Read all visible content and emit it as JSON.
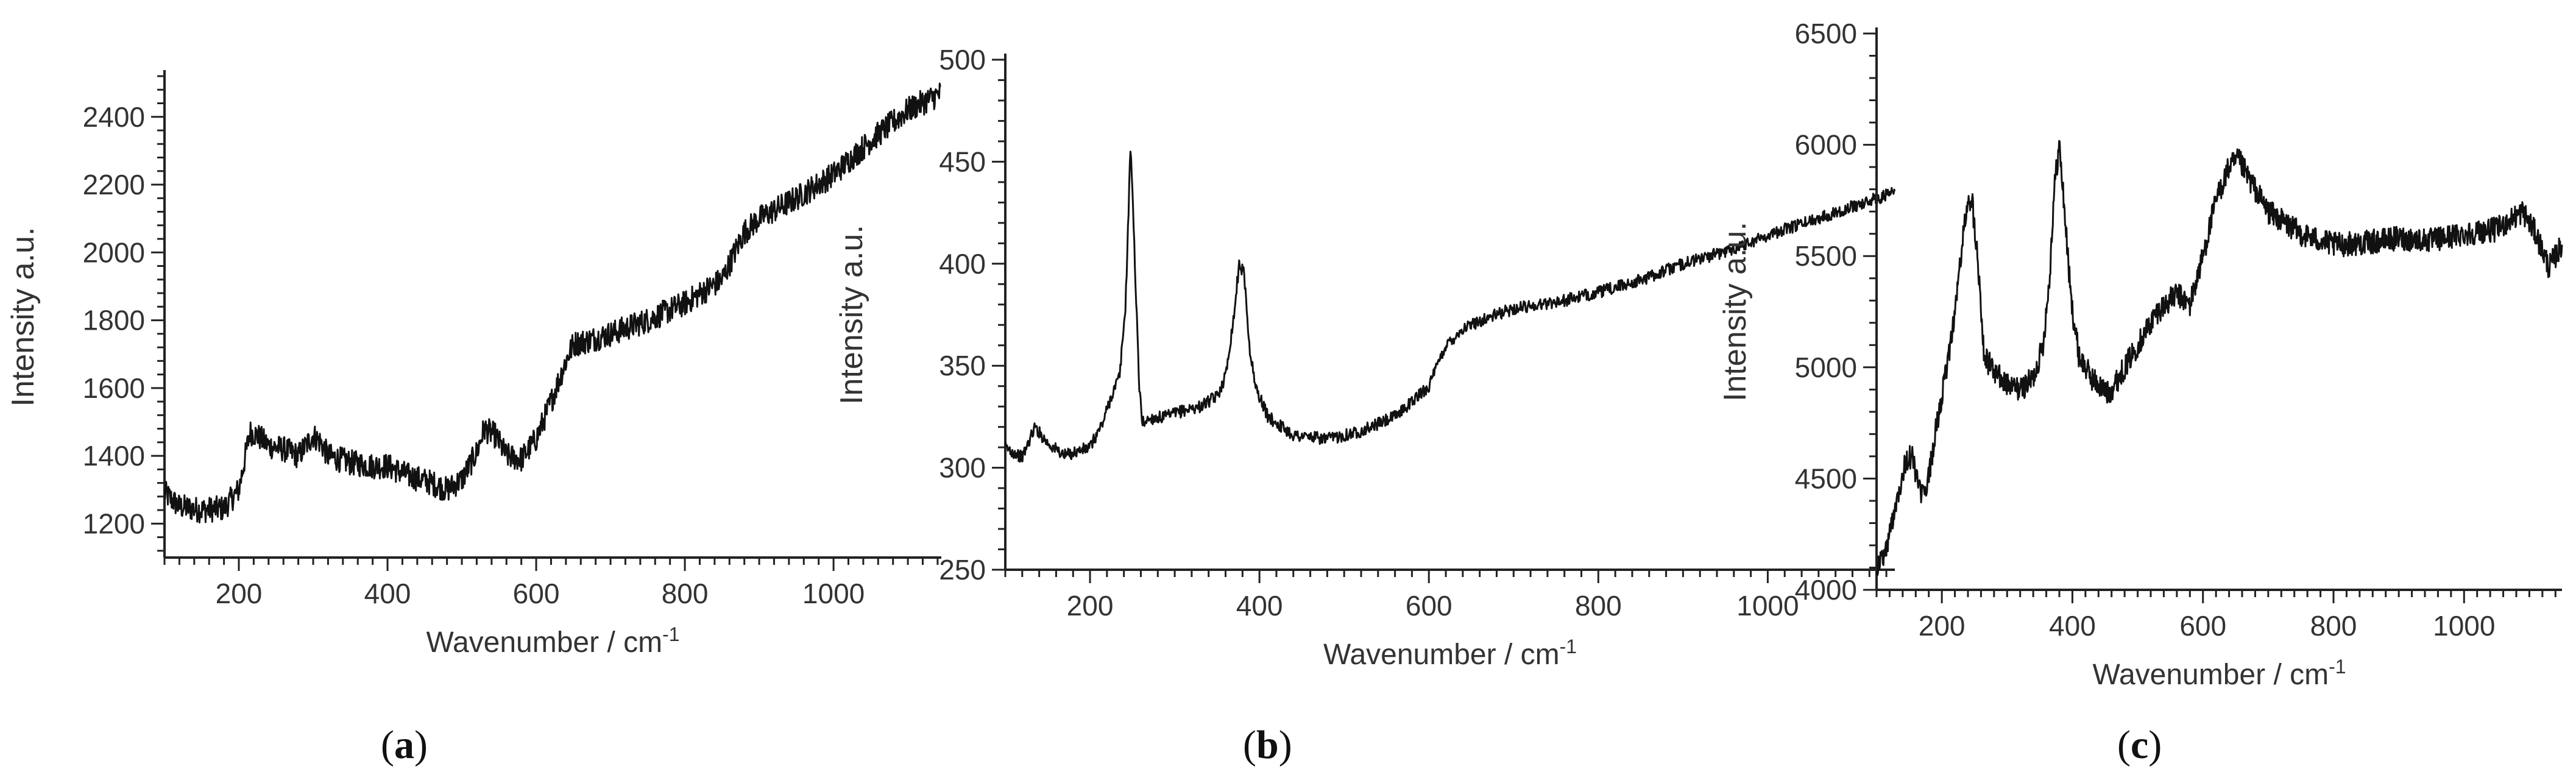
{
  "figure": {
    "captions": [
      {
        "open": "(",
        "letter": "a",
        "close": ")"
      },
      {
        "open": "(",
        "letter": "b",
        "close": ")"
      },
      {
        "open": "(",
        "letter": "c",
        "close": ")"
      }
    ]
  },
  "chart_data": [
    {
      "type": "line",
      "title": "",
      "xlabel": "Wavenumber / cm",
      "xlabel_superscript": "-1",
      "ylabel": "Intensity  a.u.",
      "xlim": [
        100,
        1145
      ],
      "ylim": [
        1100,
        2520
      ],
      "xticks": [
        200,
        400,
        600,
        800,
        1000
      ],
      "yticks": [
        1200,
        1400,
        1600,
        1800,
        2000,
        2200,
        2400
      ],
      "grid": false,
      "line_color": "#111111",
      "noise": 38,
      "series": [
        {
          "x": [
            100,
            120,
            150,
            180,
            200,
            215,
            225,
            240,
            260,
            280,
            300,
            310,
            320,
            350,
            380,
            400,
            430,
            460,
            480,
            500,
            520,
            530,
            545,
            560,
            580,
            600,
            620,
            640,
            650,
            670,
            700,
            750,
            800,
            850,
            880,
            900,
            950,
            1000,
            1050,
            1100,
            1145
          ],
          "y": [
            1290,
            1250,
            1240,
            1245,
            1300,
            1470,
            1460,
            1430,
            1420,
            1400,
            1460,
            1440,
            1400,
            1380,
            1370,
            1370,
            1340,
            1320,
            1300,
            1330,
            1410,
            1480,
            1460,
            1400,
            1390,
            1450,
            1560,
            1680,
            1730,
            1740,
            1760,
            1800,
            1850,
            1920,
            2060,
            2100,
            2160,
            2230,
            2330,
            2420,
            2470
          ]
        }
      ]
    },
    {
      "type": "line",
      "title": "",
      "xlabel": "Wavenumber / cm",
      "xlabel_superscript": "-1",
      "ylabel": "Intensity  a.u.",
      "xlim": [
        100,
        1150
      ],
      "ylim": [
        250,
        500
      ],
      "xticks": [
        200,
        400,
        600,
        800,
        1000
      ],
      "yticks": [
        250,
        300,
        350,
        400,
        450,
        500
      ],
      "grid": false,
      "line_color": "#111111",
      "noise": 3,
      "series": [
        {
          "x": [
            100,
            120,
            135,
            150,
            170,
            200,
            215,
            225,
            235,
            242,
            248,
            253,
            258,
            262,
            270,
            290,
            310,
            330,
            350,
            360,
            370,
            376,
            382,
            388,
            395,
            410,
            440,
            480,
            520,
            560,
            600,
            620,
            640,
            660,
            700,
            760,
            800,
            850,
            900,
            950,
            1000,
            1050,
            1100,
            1150
          ],
          "y": [
            310,
            305,
            320,
            312,
            306,
            310,
            322,
            335,
            345,
            380,
            460,
            400,
            340,
            322,
            324,
            325,
            328,
            330,
            335,
            345,
            375,
            400,
            395,
            360,
            340,
            325,
            316,
            314,
            318,
            325,
            340,
            360,
            368,
            372,
            378,
            382,
            386,
            392,
            400,
            406,
            414,
            421,
            428,
            435
          ]
        }
      ]
    },
    {
      "type": "line",
      "title": "",
      "xlabel": "Wavenumber / cm",
      "xlabel_superscript": "-1",
      "ylabel": "Intensity  a.u.",
      "xlim": [
        100,
        1150
      ],
      "ylim": [
        4000,
        6500
      ],
      "xticks": [
        200,
        400,
        600,
        800,
        1000
      ],
      "yticks": [
        4000,
        4500,
        5000,
        5500,
        6000,
        6500
      ],
      "grid": false,
      "line_color": "#111111",
      "noise": 55,
      "series": [
        {
          "x": [
            100,
            115,
            130,
            145,
            155,
            165,
            175,
            190,
            205,
            220,
            235,
            245,
            255,
            265,
            280,
            300,
            320,
            340,
            355,
            365,
            372,
            380,
            388,
            398,
            410,
            430,
            455,
            470,
            500,
            530,
            560,
            580,
            600,
            620,
            640,
            655,
            670,
            700,
            750,
            800,
            850,
            900,
            950,
            1000,
            1050,
            1090,
            1110,
            1130,
            1150
          ],
          "y": [
            4100,
            4180,
            4400,
            4580,
            4600,
            4450,
            4420,
            4700,
            4950,
            5250,
            5650,
            5780,
            5500,
            5050,
            4980,
            4920,
            4900,
            4950,
            5100,
            5400,
            5800,
            6000,
            5700,
            5300,
            5050,
            4950,
            4880,
            4950,
            5100,
            5250,
            5330,
            5280,
            5500,
            5750,
            5900,
            5930,
            5850,
            5700,
            5600,
            5550,
            5560,
            5580,
            5570,
            5600,
            5620,
            5700,
            5600,
            5450,
            5550
          ]
        }
      ]
    }
  ]
}
